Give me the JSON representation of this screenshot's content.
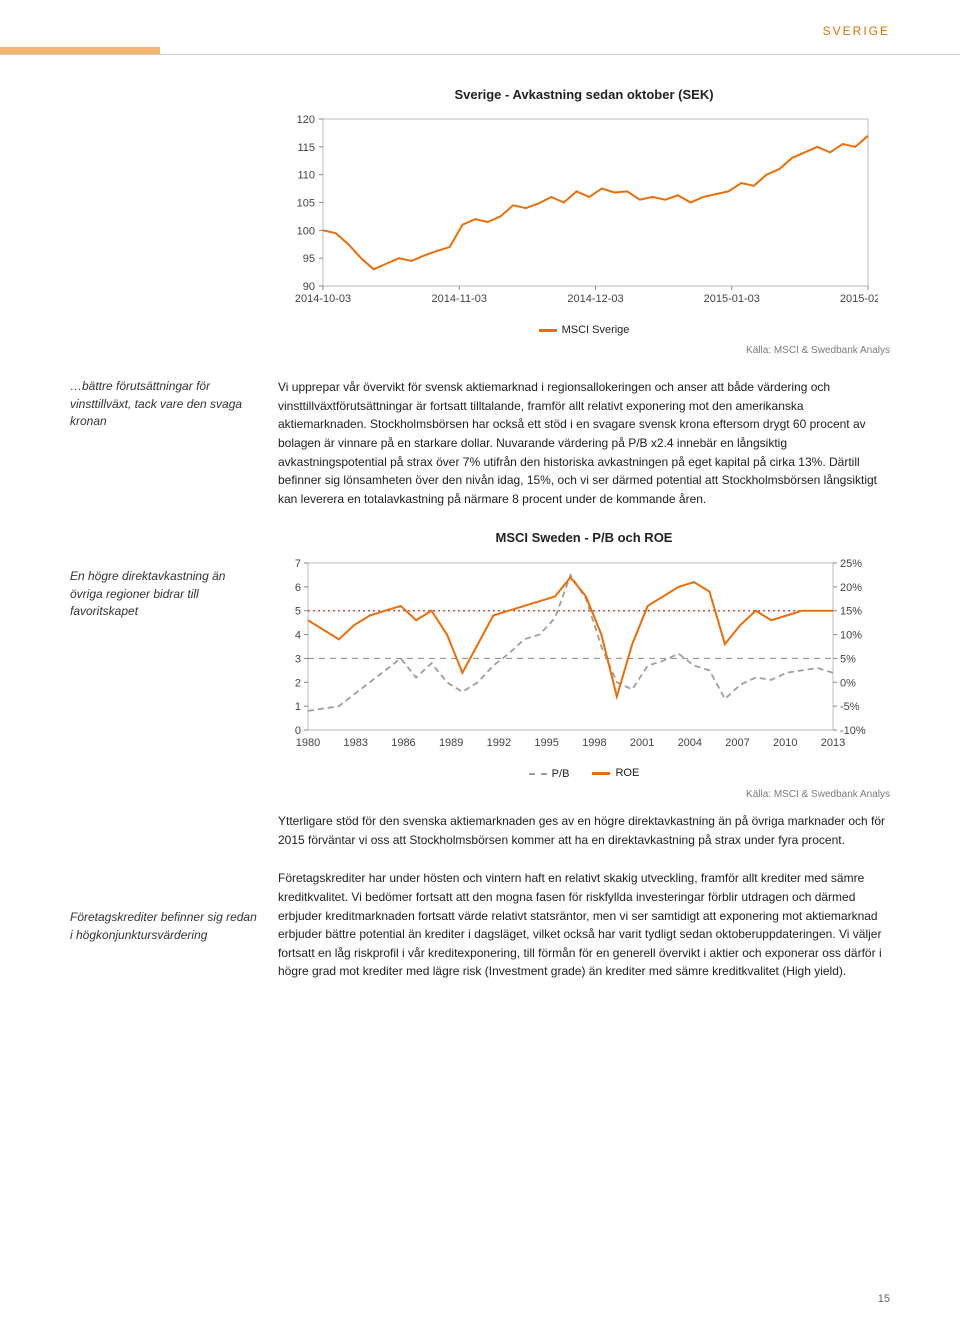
{
  "header": {
    "tag": "SVERIGE",
    "tag_color": "#e07000",
    "accent_bar_color": "#f2b470"
  },
  "page_number": "15",
  "margin_notes": {
    "note1": "…bättre förutsättningar för vinsttillväxt, tack vare den svaga kronan",
    "note2": "En högre direktavkastning än övriga regioner bidrar till favoritskapet",
    "note3": "Företagskrediter befinner sig redan i högkonjunktursvärdering"
  },
  "paragraphs": {
    "p1": "Vi upprepar vår övervikt för svensk aktiemarknad i regionsallokeringen och anser att både värdering och vinsttillväxtförutsättningar är fortsatt tilltalande, framför allt relativt exponering mot den amerikanska aktiemarknaden. Stockholmsbörsen har också ett stöd i en svagare svensk krona eftersom drygt 60 procent av bolagen är vinnare på en starkare dollar. Nuvarande värdering på P/B x2.4 innebär en långsiktig avkastningspotential på strax över 7% utifrån den historiska avkastningen på eget kapital på cirka 13%. Därtill befinner sig lönsamheten över den nivån idag, 15%, och vi ser därmed potential att Stockholmsbörsen långsiktigt kan leverera en totalavkastning på närmare 8 procent under de kommande åren.",
    "p2": "Ytterligare stöd för den svenska aktiemarknaden ges av en högre direktavkastning än på övriga marknader och för 2015 förväntar vi oss att Stockholmsbörsen kommer att ha en direktavkastning på strax under fyra procent.",
    "p3": "Företagskrediter har under hösten och vintern haft en relativt skakig utveckling, framför allt krediter med sämre kreditkvalitet. Vi bedömer fortsatt att den mogna fasen för riskfyllda investeringar förblir utdragen och därmed erbjuder kreditmarknaden fortsatt värde relativt statsräntor, men vi ser samtidigt att exponering mot aktiemarknad erbjuder bättre potential än krediter i dagsläget, vilket också har varit tydligt sedan oktoberuppdateringen. Vi väljer fortsatt en låg riskprofil i vår kreditexponering, till förmån för en generell övervikt i aktier och exponerar oss därför i högre grad mot krediter med lägre risk (Investment grade) än krediter med sämre kreditkvalitet (High yield)."
  },
  "chart1": {
    "type": "line",
    "title": "Sverige - Avkastning sedan oktober (SEK)",
    "x_labels": [
      "2014-10-03",
      "2014-11-03",
      "2014-12-03",
      "2015-01-03",
      "2015-02-03"
    ],
    "ylim": [
      90,
      120
    ],
    "ytick_step": 5,
    "yticks": [
      90,
      95,
      100,
      105,
      110,
      115,
      120
    ],
    "series_name": "MSCI Sverige",
    "line_color": "#eb6e08",
    "line_width": 2,
    "grid_color": "#dddddd",
    "tick_color": "#888888",
    "axis_color": "#bbbbbb",
    "label_fontsize": 11,
    "background_color": "#ffffff",
    "source": "Källa: MSCI & Swedbank Analys",
    "data_points": [
      100,
      99.5,
      97.5,
      95,
      93,
      94,
      95,
      94.5,
      95.5,
      96.3,
      97,
      101,
      102,
      101.5,
      102.5,
      104.5,
      104,
      104.8,
      106,
      105,
      107,
      106,
      107.5,
      106.8,
      107,
      105.5,
      106,
      105.5,
      106.3,
      105,
      106,
      106.5,
      107,
      108.5,
      108,
      110,
      111,
      113,
      114,
      115,
      114,
      115.5,
      115,
      117
    ]
  },
  "chart2": {
    "type": "line",
    "title": "MSCI Sweden - P/B och ROE",
    "x_labels": [
      "1980",
      "1983",
      "1986",
      "1989",
      "1992",
      "1995",
      "1998",
      "2001",
      "2004",
      "2007",
      "2010",
      "2013"
    ],
    "left_ylim": [
      0,
      7
    ],
    "left_yticks": [
      0,
      1,
      2,
      3,
      4,
      5,
      6,
      7
    ],
    "right_ylim": [
      -10,
      25
    ],
    "right_yticks": [
      "25%",
      "20%",
      "15%",
      "10%",
      "5%",
      "0%",
      "-5%",
      "-10%"
    ],
    "right_ytick_values": [
      25,
      20,
      15,
      10,
      5,
      0,
      -5,
      -10
    ],
    "grid_color": "#dddddd",
    "axis_color": "#bbbbbb",
    "label_fontsize": 11,
    "background_color": "#ffffff",
    "series1_name": "P/B",
    "series1_color": "#9e9e9e",
    "series1_dash": "6,4",
    "series1_width": 1.8,
    "series2_name": "ROE",
    "series2_color": "#eb6e08",
    "series2_width": 2,
    "ref15_color": "#d22a2a",
    "ref5_color": "#888888",
    "source": "Källa: MSCI & Swedbank Analys",
    "pb_data": [
      0.8,
      0.9,
      1,
      1.5,
      2,
      2.5,
      3,
      2.2,
      2.8,
      2,
      1.6,
      2,
      2.7,
      3.2,
      3.8,
      4,
      4.7,
      6.5,
      5.5,
      3.5,
      2,
      1.7,
      2.7,
      2.9,
      3.2,
      2.7,
      2.5,
      1.3,
      1.9,
      2.2,
      2.1,
      2.4,
      2.5,
      2.6,
      2.4
    ],
    "roe_data": [
      13,
      11,
      9,
      12,
      14,
      15,
      16,
      13,
      15,
      10,
      2,
      8,
      14,
      15,
      16,
      17,
      18,
      22,
      18,
      10,
      -3,
      8,
      16,
      18,
      20,
      21,
      19,
      8,
      12,
      15,
      13,
      14,
      15,
      15,
      15
    ]
  }
}
